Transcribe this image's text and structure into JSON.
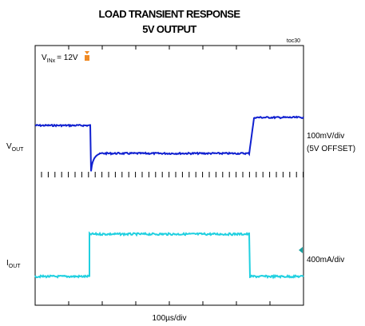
{
  "header": {
    "title": "LOAD TRANSIENT RESPONSE",
    "subtitle": "5V OUTPUT",
    "tag": "toc30"
  },
  "annotation": {
    "symbol": "V",
    "subscript": "INx",
    "text": "= 12V"
  },
  "channels": [
    {
      "symbol": "V",
      "subscript": "OUT",
      "scale": "100mV/div",
      "note": "(5V OFFSET)"
    },
    {
      "symbol": "I",
      "subscript": "OUT",
      "scale": "400mA/div"
    }
  ],
  "time_scale": "100µs/div"
}
